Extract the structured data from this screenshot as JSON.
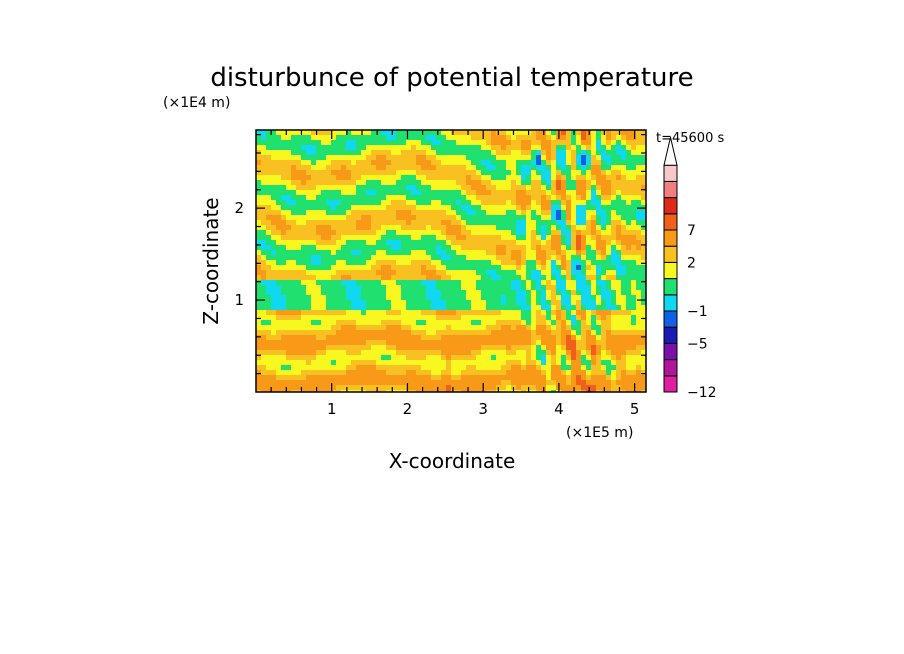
{
  "chart_data": {
    "type": "heatmap",
    "title": "disturbunce of potential temperature",
    "time_label": "t=45600 s",
    "xlabel": "X-coordinate",
    "ylabel": "Z-coordinate",
    "x_scale_label": "(×1E5 m)",
    "y_scale_label": "(×1E4 m)",
    "xlim": [
      0,
      5.15
    ],
    "ylim": [
      0,
      2.85
    ],
    "x_ticks": [
      "1",
      "2",
      "3",
      "4",
      "5"
    ],
    "y_ticks": [
      "1",
      "2"
    ],
    "colorbar": {
      "colors": [
        "#e020a0",
        "#b0169c",
        "#7a10a8",
        "#1a1ab4",
        "#1060e8",
        "#10d8f0",
        "#20e070",
        "#f8f820",
        "#f8c020",
        "#f89a18",
        "#f06018",
        "#e02818",
        "#f08080",
        "#f8c8c8"
      ],
      "tick_labels": [
        "-12",
        "-5",
        "-1",
        "2",
        "7"
      ],
      "extend_max": true
    },
    "field_summary": {
      "color_scale": "levels -12 to 7 (colorbar ticks), dominant range about -1 to 3",
      "lower_layer_z": [
        0,
        0.9
      ],
      "lower_layer_values": [
        0.5,
        3
      ],
      "mid_band_z": [
        0.9,
        1.2
      ],
      "mid_band_value": -0.5,
      "upper_layers_z": [
        1.2,
        2.85
      ],
      "upper_layer_values": [
        -1,
        2
      ],
      "plume_x": [
        3.4,
        4.9
      ],
      "plume_max_value": 5,
      "min_value": -5,
      "min_location": [
        3.72,
        2.52
      ]
    }
  }
}
